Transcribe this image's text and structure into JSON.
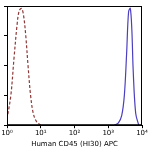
{
  "chart_data": {
    "type": "line",
    "x_label": "Human CD45 (HI30) APC",
    "log": "x",
    "grid": false,
    "tick_labels": "x",
    "xlim": [
      1,
      10000
    ],
    "xticks": [
      {
        "value": 1,
        "label": "10⁰"
      },
      {
        "value": 10,
        "label": "10¹"
      },
      {
        "value": 100,
        "label": "10²"
      },
      {
        "value": 1000,
        "label": "10³"
      },
      {
        "value": 10000,
        "label": "10⁴"
      }
    ],
    "ylim": [
      0,
      100
    ],
    "yticks": [
      0,
      25,
      50,
      75,
      100
    ],
    "series": [
      {
        "color": "#8b3a3a",
        "line_style": "dashed",
        "x": [
          1,
          1.3,
          1.6,
          2,
          2.3,
          2.7,
          3.1,
          3.6,
          4.2,
          5,
          6,
          7.5,
          10
        ],
        "values": [
          5,
          25,
          55,
          85,
          96,
          98,
          92,
          75,
          50,
          25,
          10,
          3,
          0
        ]
      },
      {
        "color": "#4b3fbf",
        "line_style": "solid",
        "x": [
          1500,
          2000,
          2500,
          3000,
          3500,
          4000,
          4500,
          5000,
          5500,
          6500,
          8000
        ],
        "values": [
          0,
          2,
          8,
          25,
          60,
          95,
          98,
          80,
          45,
          10,
          0
        ]
      }
    ]
  }
}
